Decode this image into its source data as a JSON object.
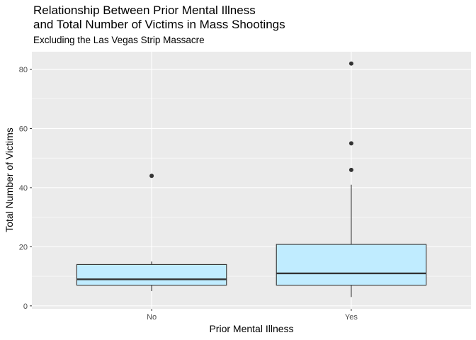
{
  "chart_data": {
    "type": "box",
    "title_line1": "Relationship Between Prior Mental Illness",
    "title_line2": "and Total Number of Victims in Mass Shootings",
    "subtitle": "Excluding the Las Vegas Strip Massacre",
    "xlabel": "Prior Mental Illness",
    "ylabel": "Total Number of Victims",
    "ylim": [
      -1,
      86
    ],
    "yticks": [
      0,
      20,
      40,
      60,
      80
    ],
    "categories": [
      "No",
      "Yes"
    ],
    "boxes": [
      {
        "category": "No",
        "whisker_low": 5,
        "q1": 7,
        "median": 9,
        "q3": 14,
        "whisker_high": 15,
        "outliers": [
          44
        ]
      },
      {
        "category": "Yes",
        "whisker_low": 3,
        "q1": 7,
        "median": 11,
        "q3": 20.8,
        "whisker_high": 41,
        "outliers": [
          46,
          55,
          82
        ]
      }
    ],
    "grid": true,
    "fill_color": "#c0ecff",
    "panel_color": "#ebebeb"
  }
}
